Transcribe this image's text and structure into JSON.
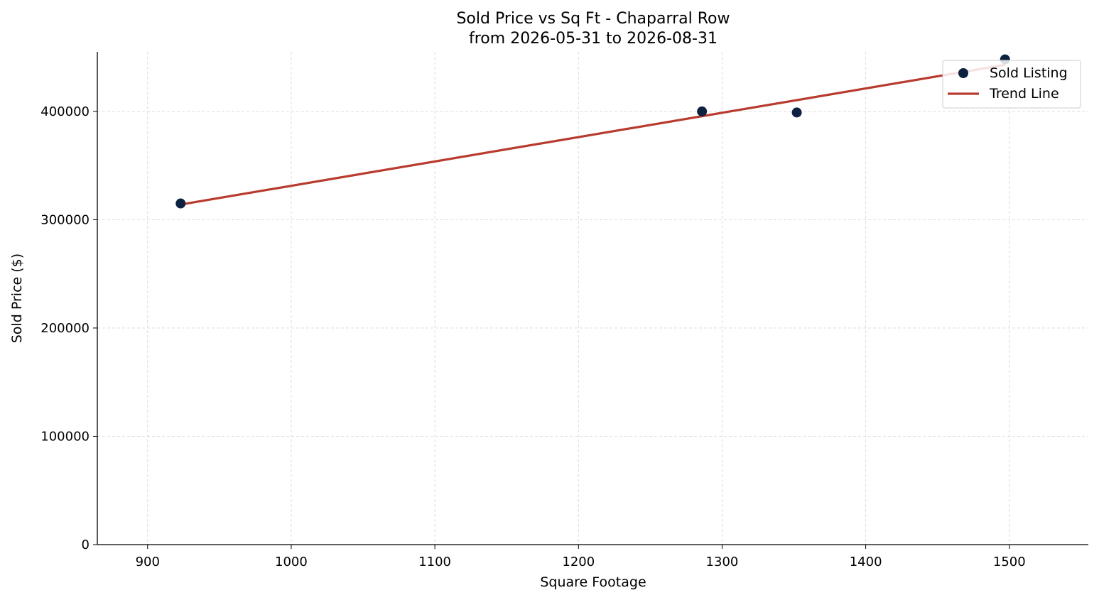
{
  "chart_data": {
    "type": "scatter",
    "title": "Sold Price vs Sq Ft - Chaparral Row",
    "subtitle": "from 2026-05-31 to 2026-08-31",
    "xlabel": "Square Footage",
    "ylabel": "Sold Price ($)",
    "xlim": [
      865,
      1555
    ],
    "ylim": [
      0,
      455000
    ],
    "x_ticks": [
      900,
      1000,
      1100,
      1200,
      1300,
      1400,
      1500
    ],
    "y_ticks": [
      0,
      100000,
      200000,
      300000,
      400000
    ],
    "grid": true,
    "legend_position": "top-right",
    "series": [
      {
        "name": "Sold Listing",
        "type": "scatter",
        "color": "#0d2240",
        "points": [
          {
            "x": 923,
            "y": 315000
          },
          {
            "x": 1286,
            "y": 400000
          },
          {
            "x": 1352,
            "y": 399000
          },
          {
            "x": 1497,
            "y": 448000
          }
        ]
      },
      {
        "name": "Trend Line",
        "type": "line",
        "color": "#b83b2e",
        "points": [
          {
            "x": 923,
            "y": 314000
          },
          {
            "x": 1497,
            "y": 443000
          }
        ]
      }
    ]
  }
}
